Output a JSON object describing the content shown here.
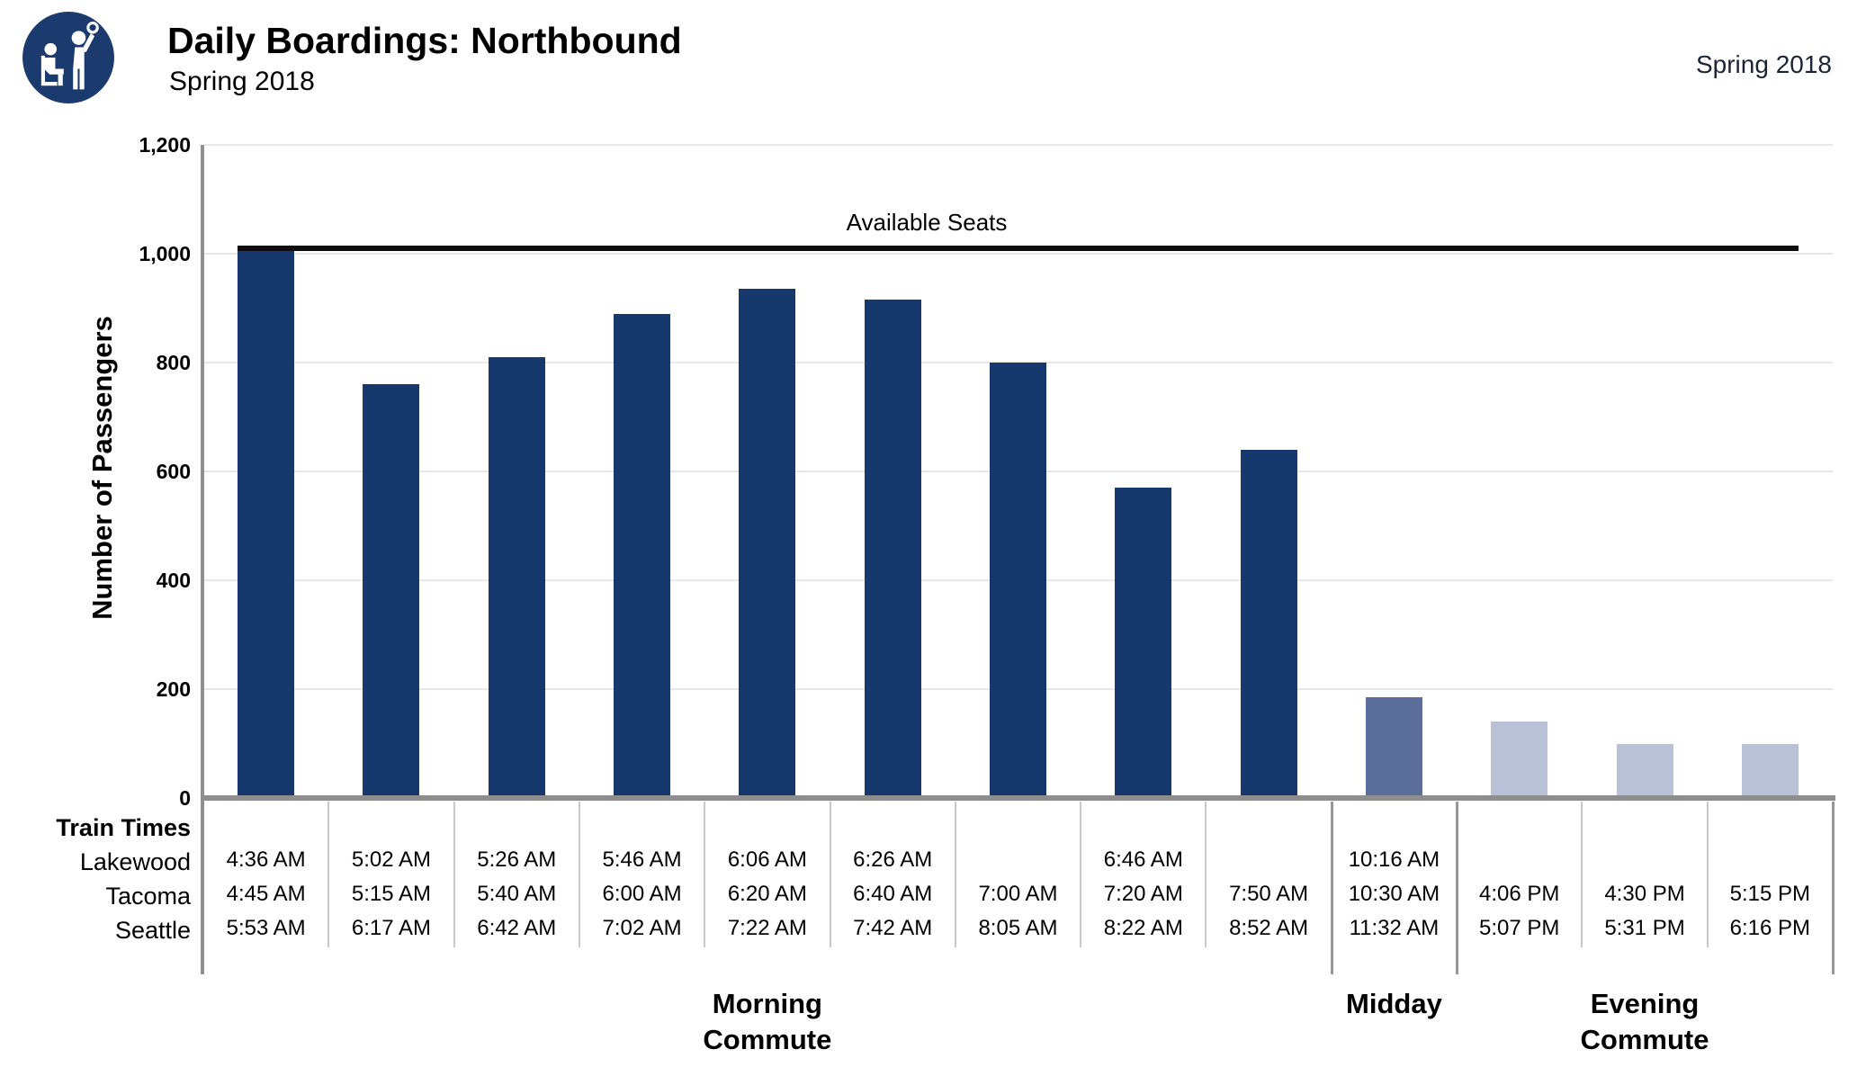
{
  "header": {
    "title": "Daily Boardings: Northbound",
    "subtitle": "Spring 2018",
    "corner_label": "Spring 2018",
    "logo": "transit-rider-icon"
  },
  "chart_data": {
    "type": "bar",
    "title": "Daily Boardings: Northbound",
    "subtitle": "Spring 2018",
    "ylabel": "Number of Passengers",
    "ylim": [
      0,
      1200
    ],
    "yticks": [
      0,
      200,
      400,
      600,
      800,
      1000,
      1200
    ],
    "ytick_labels": [
      "0",
      "200",
      "400",
      "600",
      "800",
      "1,000",
      "1,200"
    ],
    "grid": true,
    "legend": "none",
    "reference_line": {
      "value": 1010,
      "label": "Available Seats"
    },
    "colors": {
      "morning": "#17386c",
      "midday": "#5a6e99",
      "evening": "#b9c1d7"
    },
    "groups": [
      {
        "id": "morning",
        "label": "Morning Commute"
      },
      {
        "id": "midday",
        "label": "Midday"
      },
      {
        "id": "evening",
        "label": "Evening Commute"
      }
    ],
    "columns": [
      {
        "group": "morning",
        "value": 1005,
        "lakewood": "4:36 AM",
        "tacoma": "4:45 AM",
        "seattle": "5:53 AM"
      },
      {
        "group": "morning",
        "value": 760,
        "lakewood": "5:02 AM",
        "tacoma": "5:15 AM",
        "seattle": "6:17 AM"
      },
      {
        "group": "morning",
        "value": 810,
        "lakewood": "5:26 AM",
        "tacoma": "5:40 AM",
        "seattle": "6:42 AM"
      },
      {
        "group": "morning",
        "value": 890,
        "lakewood": "5:46 AM",
        "tacoma": "6:00 AM",
        "seattle": "7:02 AM"
      },
      {
        "group": "morning",
        "value": 935,
        "lakewood": "6:06 AM",
        "tacoma": "6:20 AM",
        "seattle": "7:22 AM"
      },
      {
        "group": "morning",
        "value": 915,
        "lakewood": "6:26 AM",
        "tacoma": "6:40 AM",
        "seattle": "7:42 AM"
      },
      {
        "group": "morning",
        "value": 800,
        "lakewood": "",
        "tacoma": "7:00 AM",
        "seattle": "8:05 AM"
      },
      {
        "group": "morning",
        "value": 570,
        "lakewood": "6:46 AM",
        "tacoma": "7:20 AM",
        "seattle": "8:22 AM"
      },
      {
        "group": "morning",
        "value": 640,
        "lakewood": "",
        "tacoma": "7:50 AM",
        "seattle": "8:52 AM"
      },
      {
        "group": "midday",
        "value": 185,
        "lakewood": "10:16 AM",
        "tacoma": "10:30 AM",
        "seattle": "11:32 AM"
      },
      {
        "group": "evening",
        "value": 140,
        "lakewood": "",
        "tacoma": "4:06 PM",
        "seattle": "5:07 PM"
      },
      {
        "group": "evening",
        "value": 100,
        "lakewood": "",
        "tacoma": "4:30 PM",
        "seattle": "5:31 PM"
      },
      {
        "group": "evening",
        "value": 100,
        "lakewood": "",
        "tacoma": "5:15 PM",
        "seattle": "6:16 PM"
      }
    ]
  },
  "table": {
    "header": "Train Times",
    "row_labels": [
      "Lakewood",
      "Tacoma",
      "Seattle"
    ]
  }
}
